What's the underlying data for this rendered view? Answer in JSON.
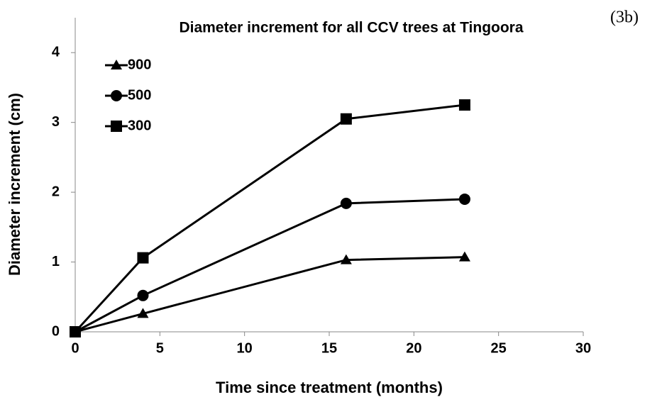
{
  "chart_data": {
    "type": "line",
    "title": "Diameter increment for all CCV trees at Tingoora",
    "annotation": "(3b)",
    "x_label": "Time since treatment (months)",
    "y_label": "Diameter increment (cm)",
    "x": [
      0,
      4,
      16,
      23
    ],
    "series": [
      {
        "name": "900",
        "color": "#000000",
        "marker": "triangle",
        "values": [
          0,
          0.26,
          1.03,
          1.07
        ]
      },
      {
        "name": "500",
        "color": "#000000",
        "marker": "circle",
        "values": [
          0,
          0.52,
          1.84,
          1.9
        ]
      },
      {
        "name": "300",
        "color": "#000000",
        "marker": "square",
        "values": [
          0,
          1.06,
          3.05,
          3.25
        ]
      }
    ],
    "xlim": [
      0,
      30
    ],
    "xticks": [
      0,
      5,
      10,
      15,
      20,
      25,
      30
    ],
    "ylim": [
      0,
      4.5
    ],
    "yticks": [
      0,
      1,
      2,
      3,
      4
    ],
    "grid": false,
    "legend": "upper left"
  }
}
